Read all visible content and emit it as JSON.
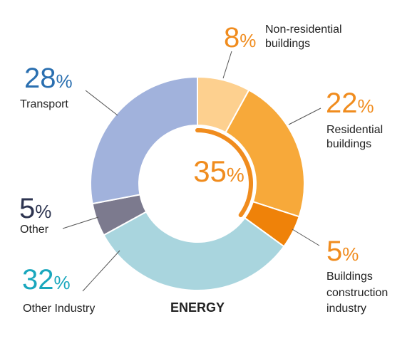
{
  "chart_data": {
    "type": "pie",
    "variant": "donut",
    "title": "",
    "slices": [
      {
        "label": "Non-residential buildings",
        "value": 8,
        "color": "#fdd08f",
        "label_color": "#f08c1e"
      },
      {
        "label": "Residential buildings",
        "value": 22,
        "color": "#f7a93a",
        "label_color": "#f08c1e"
      },
      {
        "label": "Buildings construction industry",
        "value": 5,
        "color": "#ef8209",
        "label_color": "#f08c1e"
      },
      {
        "label": "Other Industry",
        "value": 32,
        "color": "#a9d5de",
        "label_color": "#19a7bd"
      },
      {
        "label": "Other",
        "value": 5,
        "color": "#7c7a8e",
        "label_color": "#2d3450"
      },
      {
        "label": "Transport",
        "value": 28,
        "color": "#a1b2dc",
        "label_color": "#2a6fb0"
      }
    ],
    "center": {
      "value": "35",
      "unit": "%",
      "color": "#f08c1e",
      "arc_fraction": 0.35
    },
    "footer_label": "ENERGY",
    "percent_sign": "%",
    "callouts": {
      "nonres": {
        "num": "8",
        "lines": [
          "Non-residential",
          "buildings"
        ]
      },
      "res": {
        "num": "22",
        "lines": [
          "Residential",
          "buildings"
        ]
      },
      "bci": {
        "num": "5",
        "lines": [
          "Buildings",
          "construction",
          "industry"
        ]
      },
      "oind": {
        "num": "32",
        "lines": [
          "Other Industry"
        ]
      },
      "other": {
        "num": "5",
        "lines": [
          "Other"
        ]
      },
      "transport": {
        "num": "28",
        "lines": [
          "Transport"
        ]
      }
    }
  }
}
